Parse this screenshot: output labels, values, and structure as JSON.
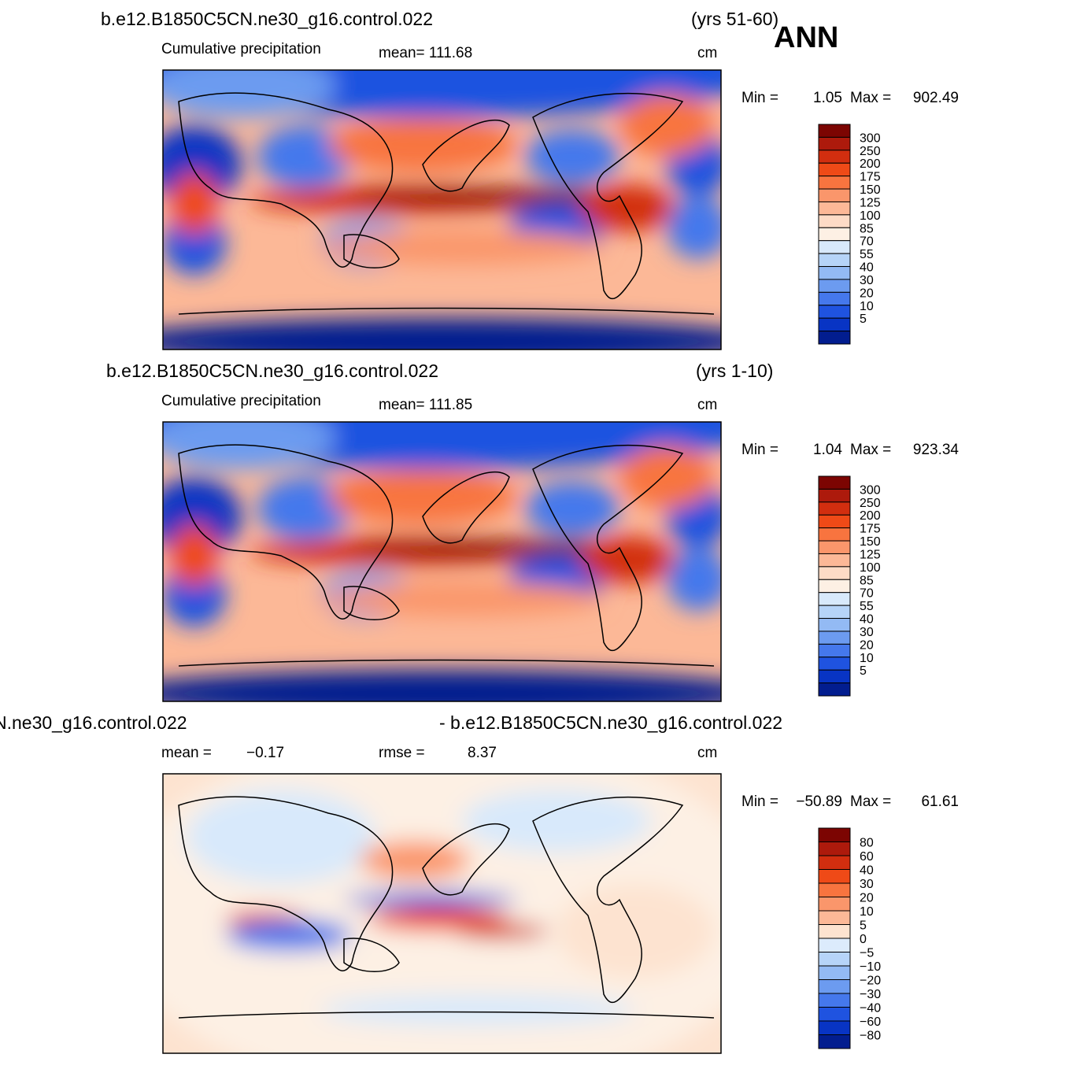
{
  "season": "ANN",
  "panels": [
    {
      "case": "b.e12.B1850C5CN.ne30_g16.control.022",
      "years": "(yrs 51-60)",
      "field": "Cumulative precipitation",
      "stat1": "mean=  111.68",
      "units": "cm",
      "min_label": "Min  =",
      "min": "1.05",
      "max_label": "Max  =",
      "max": "902.49",
      "levels": [
        "300",
        "250",
        "200",
        "175",
        "150",
        "125",
        "100",
        "85",
        "70",
        "55",
        "40",
        "30",
        "20",
        "10",
        "5"
      ],
      "colors": [
        "#7c0502",
        "#ad1a0c",
        "#d22e0f",
        "#ef4a17",
        "#f8743f",
        "#fa966b",
        "#fcb897",
        "#fddbc6",
        "#fdf0e4",
        "#d8e9fb",
        "#b6d4f8",
        "#93baf4",
        "#6c9bf0",
        "#4578ec",
        "#1f53e0",
        "#0834c4",
        "#021d8f"
      ]
    },
    {
      "case": "b.e12.B1850C5CN.ne30_g16.control.022",
      "years": "(yrs 1-10)",
      "field": "Cumulative precipitation",
      "stat1": "mean=  111.85",
      "units": "cm",
      "min_label": "Min  =",
      "min": "1.04",
      "max_label": "Max  =",
      "max": "923.34",
      "levels": [
        "300",
        "250",
        "200",
        "175",
        "150",
        "125",
        "100",
        "85",
        "70",
        "55",
        "40",
        "30",
        "20",
        "10",
        "5"
      ],
      "colors": [
        "#7c0502",
        "#ad1a0c",
        "#d22e0f",
        "#ef4a17",
        "#f8743f",
        "#fa966b",
        "#fcb897",
        "#fddbc6",
        "#fdf0e4",
        "#d8e9fb",
        "#b6d4f8",
        "#93baf4",
        "#6c9bf0",
        "#4578ec",
        "#1f53e0",
        "#0834c4",
        "#021d8f"
      ]
    },
    {
      "case": "N.ne30_g16.control.022",
      "years": "- b.e12.B1850C5CN.ne30_g16.control.022",
      "field": "mean  =",
      "stat0": "−0.17",
      "stat1": "rmse  =",
      "stat2": "8.37",
      "units": "cm",
      "min_label": "Min  =",
      "min": "−50.89",
      "max_label": "Max  =",
      "max": "61.61",
      "levels": [
        "80",
        "60",
        "40",
        "30",
        "20",
        "10",
        "5",
        "0",
        "−5",
        "−10",
        "−20",
        "−30",
        "−40",
        "−60",
        "−80"
      ],
      "colors": [
        "#7c0502",
        "#ad1a0c",
        "#d22e0f",
        "#ef4a17",
        "#f8743f",
        "#fa966b",
        "#fcb897",
        "#fde3d0",
        "#dcebfc",
        "#b6d4f8",
        "#93baf4",
        "#6c9bf0",
        "#4578ec",
        "#1f53e0",
        "#0834c4",
        "#021d8f"
      ]
    }
  ]
}
